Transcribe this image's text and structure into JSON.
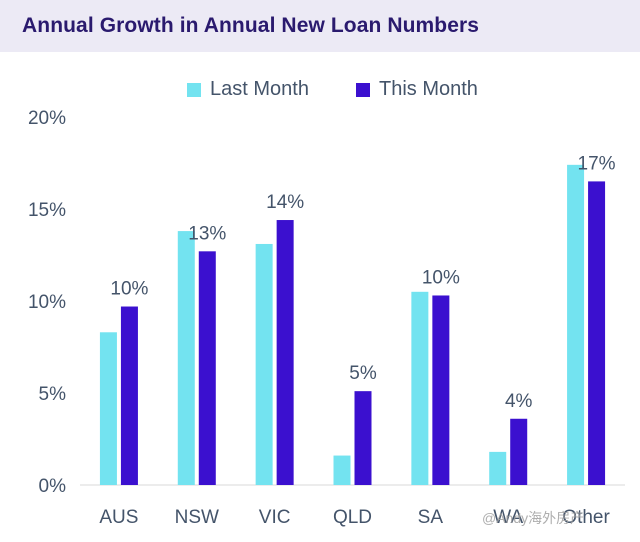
{
  "title": "Annual Growth in Annual New Loan Numbers",
  "watermark": "@Andy海外房产",
  "legend": [
    {
      "label": "Last Month",
      "color": "#73e3f0"
    },
    {
      "label": "This Month",
      "color": "#3b10cf"
    }
  ],
  "chart_data": {
    "type": "bar",
    "categories": [
      "AUS",
      "NSW",
      "VIC",
      "QLD",
      "SA",
      "WA",
      "Other"
    ],
    "series": [
      {
        "name": "Last Month",
        "values": [
          8.3,
          13.8,
          13.1,
          1.6,
          10.5,
          1.8,
          17.4
        ],
        "color": "#73e3f0"
      },
      {
        "name": "This Month",
        "values": [
          9.7,
          12.7,
          14.4,
          5.1,
          10.3,
          3.6,
          16.5
        ],
        "color": "#3b10cf"
      }
    ],
    "data_labels": [
      "10%",
      "13%",
      "14%",
      "5%",
      "10%",
      "4%",
      "17%"
    ],
    "y_ticks": [
      "0%",
      "5%",
      "10%",
      "15%",
      "20%"
    ],
    "ylim": [
      0,
      20
    ],
    "grid": false,
    "legend_position": "top"
  }
}
